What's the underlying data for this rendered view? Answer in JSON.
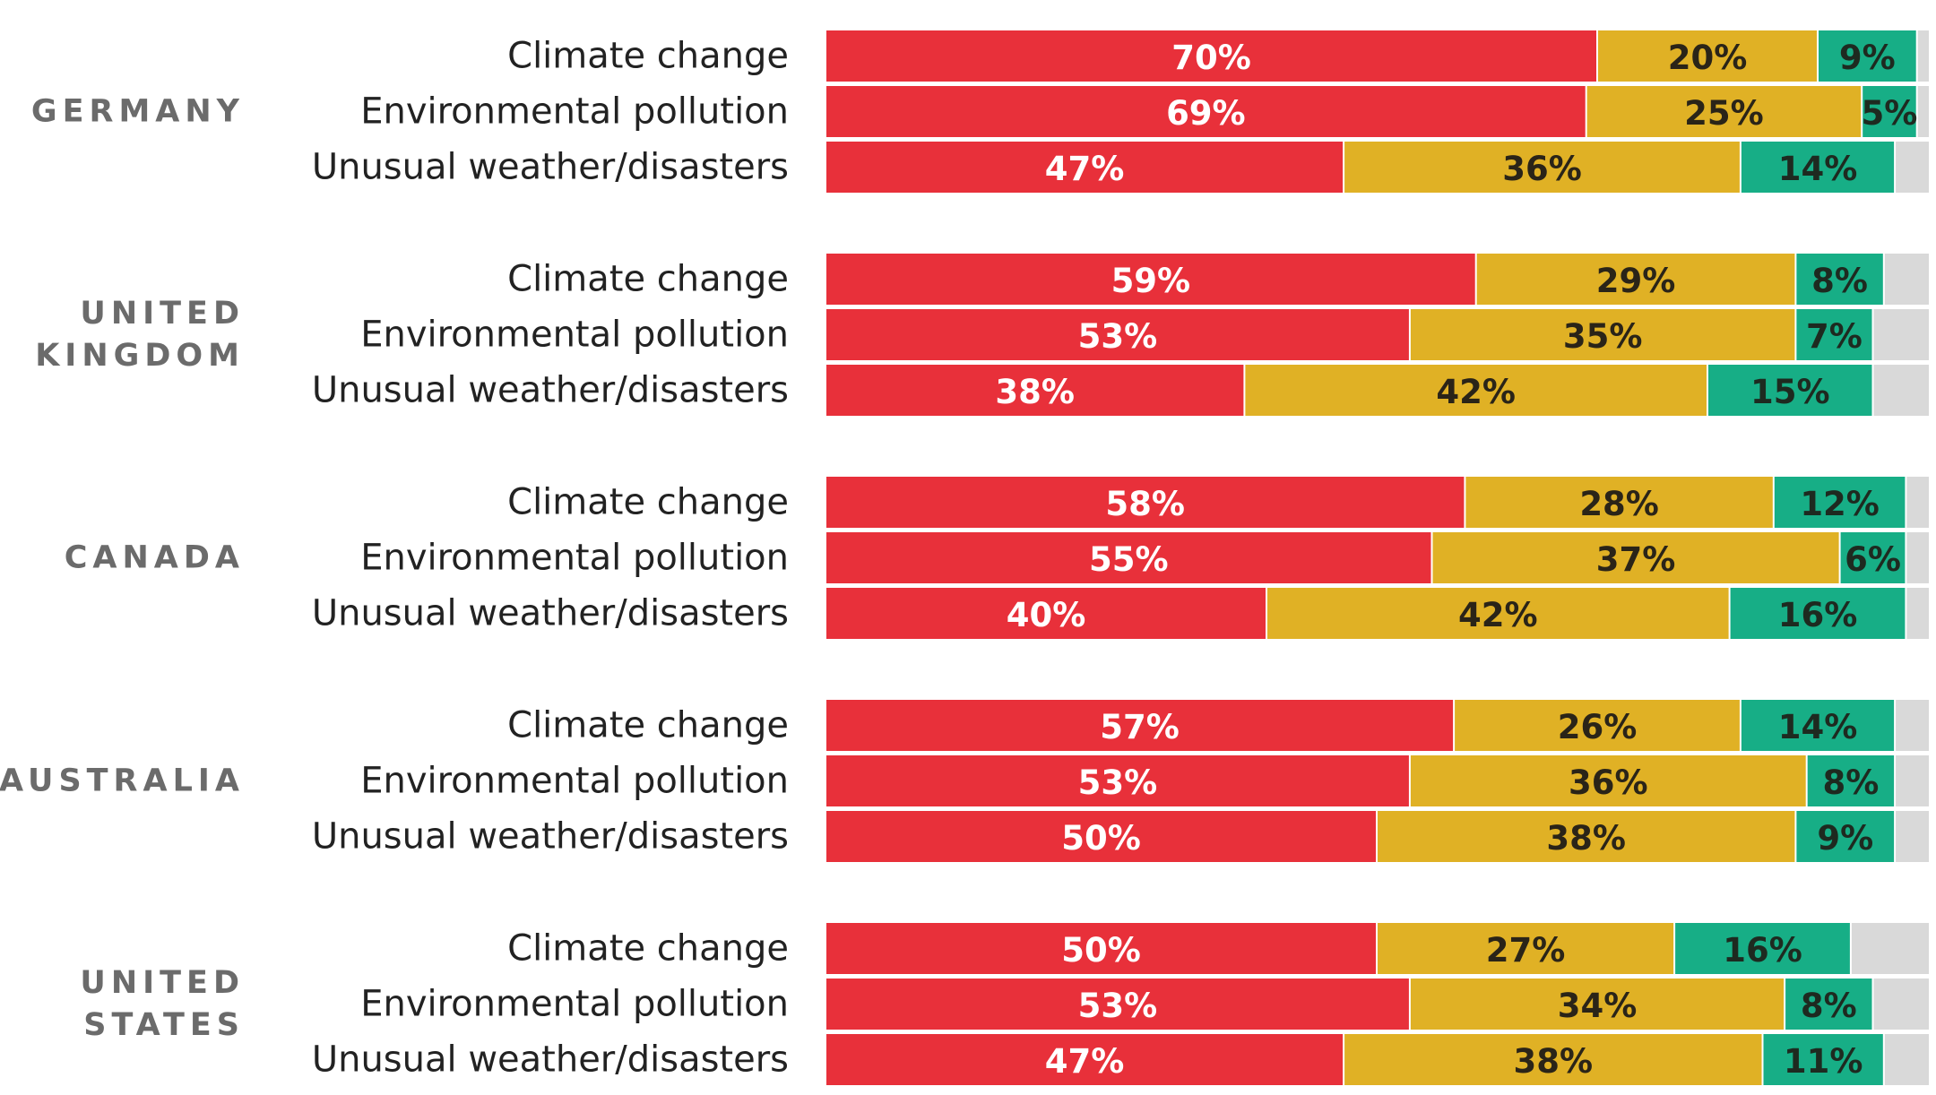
{
  "colors": {
    "segments": [
      "#e8303a",
      "#e0b125",
      "#17ae86",
      "#d9d9d9"
    ],
    "label_colors": [
      "#ffffff",
      "#2a2418",
      "#1e2a20",
      "#333333"
    ],
    "country_label": "#6b6b6b",
    "row_label": "#222222"
  },
  "chart_data": {
    "type": "bar",
    "orientation": "horizontal",
    "stacked": true,
    "percent_suffix": "%",
    "xlim": [
      0,
      100
    ],
    "grid": false,
    "legend": "none",
    "groups": [
      {
        "country": [
          "GERMANY"
        ],
        "rows": [
          {
            "label": "Climate change",
            "values": [
              70,
              20,
              9,
              1
            ]
          },
          {
            "label": "Environmental pollution",
            "values": [
              69,
              25,
              5,
              1
            ]
          },
          {
            "label": "Unusual weather/disasters",
            "values": [
              47,
              36,
              14,
              3
            ]
          }
        ]
      },
      {
        "country": [
          "UNITED",
          "KINGDOM"
        ],
        "rows": [
          {
            "label": "Climate change",
            "values": [
              59,
              29,
              8,
              4
            ]
          },
          {
            "label": "Environmental pollution",
            "values": [
              53,
              35,
              7,
              5
            ]
          },
          {
            "label": "Unusual weather/disasters",
            "values": [
              38,
              42,
              15,
              5
            ]
          }
        ]
      },
      {
        "country": [
          "CANADA"
        ],
        "rows": [
          {
            "label": "Climate change",
            "values": [
              58,
              28,
              12,
              2
            ]
          },
          {
            "label": "Environmental pollution",
            "values": [
              55,
              37,
              6,
              2
            ]
          },
          {
            "label": "Unusual weather/disasters",
            "values": [
              40,
              42,
              16,
              2
            ]
          }
        ]
      },
      {
        "country": [
          "AUSTRALIA"
        ],
        "rows": [
          {
            "label": "Climate change",
            "values": [
              57,
              26,
              14,
              3
            ]
          },
          {
            "label": "Environmental pollution",
            "values": [
              53,
              36,
              8,
              3
            ]
          },
          {
            "label": "Unusual weather/disasters",
            "values": [
              50,
              38,
              9,
              3
            ]
          }
        ]
      },
      {
        "country": [
          "UNITED",
          "STATES"
        ],
        "rows": [
          {
            "label": "Climate change",
            "values": [
              50,
              27,
              16,
              7
            ]
          },
          {
            "label": "Environmental pollution",
            "values": [
              53,
              34,
              8,
              5
            ]
          },
          {
            "label": "Unusual weather/disasters",
            "values": [
              47,
              38,
              11,
              4
            ]
          }
        ]
      }
    ]
  }
}
